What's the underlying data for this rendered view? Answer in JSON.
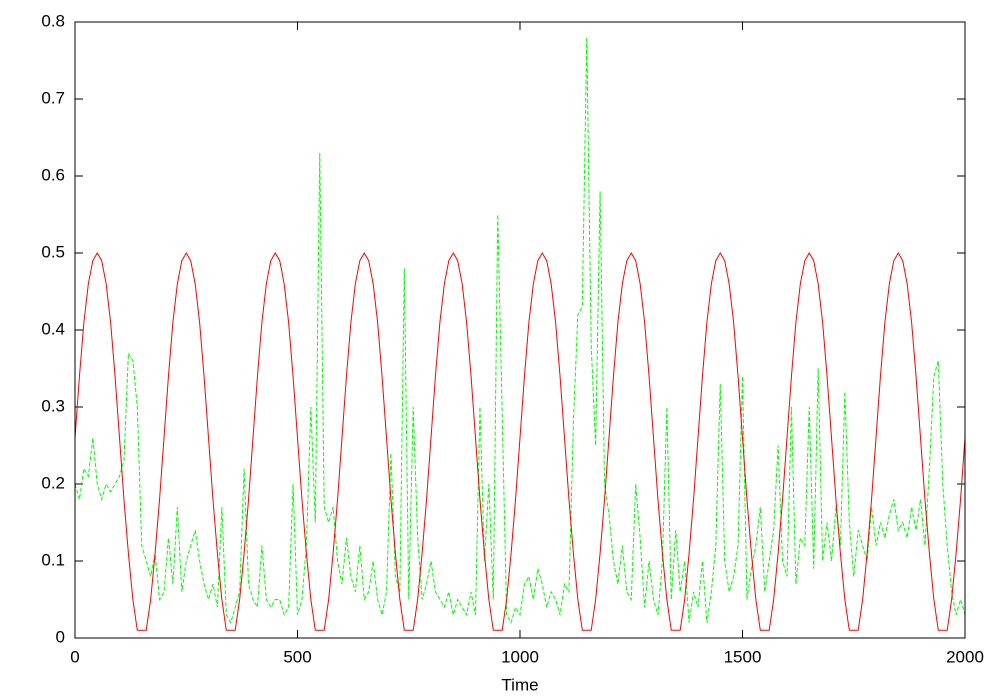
{
  "chart_data": {
    "type": "line",
    "xlabel": "Time",
    "x": [
      0,
      10,
      20,
      30,
      40,
      50,
      60,
      70,
      80,
      90,
      100,
      110,
      120,
      130,
      140,
      150,
      160,
      170,
      180,
      190,
      200,
      210,
      220,
      230,
      240,
      250,
      260,
      270,
      280,
      290,
      300,
      310,
      320,
      330,
      340,
      350,
      360,
      370,
      380,
      390,
      400,
      410,
      420,
      430,
      440,
      450,
      460,
      470,
      480,
      490,
      500,
      510,
      520,
      530,
      540,
      550,
      560,
      570,
      580,
      590,
      600,
      610,
      620,
      630,
      640,
      650,
      660,
      670,
      680,
      690,
      700,
      710,
      720,
      730,
      740,
      750,
      760,
      770,
      780,
      790,
      800,
      810,
      820,
      830,
      840,
      850,
      860,
      870,
      880,
      890,
      900,
      910,
      920,
      930,
      940,
      950,
      960,
      970,
      980,
      990,
      1000,
      1010,
      1020,
      1030,
      1040,
      1050,
      1060,
      1070,
      1080,
      1090,
      1100,
      1110,
      1120,
      1130,
      1140,
      1150,
      1160,
      1170,
      1180,
      1190,
      1200,
      1210,
      1220,
      1230,
      1240,
      1250,
      1260,
      1270,
      1280,
      1290,
      1300,
      1310,
      1320,
      1330,
      1340,
      1350,
      1360,
      1370,
      1380,
      1390,
      1400,
      1410,
      1420,
      1430,
      1440,
      1450,
      1460,
      1470,
      1480,
      1490,
      1500,
      1510,
      1520,
      1530,
      1540,
      1550,
      1560,
      1570,
      1580,
      1590,
      1600,
      1610,
      1620,
      1630,
      1640,
      1650,
      1660,
      1670,
      1680,
      1690,
      1700,
      1710,
      1720,
      1730,
      1740,
      1750,
      1760,
      1770,
      1780,
      1790,
      1800,
      1810,
      1820,
      1830,
      1840,
      1850,
      1860,
      1870,
      1880,
      1890,
      1900,
      1910,
      1920,
      1930,
      1940,
      1950,
      1960,
      1970,
      1980,
      1990,
      2000
    ],
    "series": [
      {
        "color": "#00ff00",
        "dashed": true,
        "values": [
          0.2,
          0.18,
          0.22,
          0.21,
          0.26,
          0.2,
          0.18,
          0.2,
          0.19,
          0.2,
          0.21,
          0.23,
          0.37,
          0.36,
          0.3,
          0.12,
          0.1,
          0.08,
          0.11,
          0.05,
          0.06,
          0.13,
          0.07,
          0.17,
          0.06,
          0.1,
          0.12,
          0.14,
          0.1,
          0.07,
          0.05,
          0.07,
          0.04,
          0.17,
          0.03,
          0.02,
          0.04,
          0.06,
          0.22,
          0.07,
          0.05,
          0.04,
          0.12,
          0.05,
          0.04,
          0.05,
          0.05,
          0.03,
          0.04,
          0.2,
          0.03,
          0.05,
          0.12,
          0.3,
          0.15,
          0.63,
          0.17,
          0.15,
          0.17,
          0.1,
          0.07,
          0.13,
          0.08,
          0.06,
          0.12,
          0.05,
          0.06,
          0.1,
          0.05,
          0.03,
          0.06,
          0.24,
          0.08,
          0.06,
          0.48,
          0.05,
          0.3,
          0.13,
          0.05,
          0.07,
          0.1,
          0.06,
          0.05,
          0.04,
          0.06,
          0.03,
          0.05,
          0.04,
          0.03,
          0.06,
          0.03,
          0.3,
          0.1,
          0.2,
          0.05,
          0.55,
          0.29,
          0.03,
          0.02,
          0.04,
          0.03,
          0.07,
          0.08,
          0.05,
          0.09,
          0.07,
          0.04,
          0.06,
          0.05,
          0.03,
          0.07,
          0.06,
          0.28,
          0.42,
          0.43,
          0.78,
          0.38,
          0.25,
          0.58,
          0.2,
          0.16,
          0.1,
          0.07,
          0.12,
          0.06,
          0.05,
          0.2,
          0.13,
          0.04,
          0.1,
          0.05,
          0.03,
          0.1,
          0.3,
          0.05,
          0.14,
          0.06,
          0.1,
          0.02,
          0.06,
          0.04,
          0.1,
          0.02,
          0.06,
          0.12,
          0.33,
          0.1,
          0.06,
          0.08,
          0.12,
          0.34,
          0.05,
          0.09,
          0.12,
          0.17,
          0.06,
          0.1,
          0.14,
          0.25,
          0.1,
          0.08,
          0.3,
          0.07,
          0.13,
          0.12,
          0.3,
          0.09,
          0.35,
          0.1,
          0.15,
          0.1,
          0.17,
          0.12,
          0.32,
          0.15,
          0.08,
          0.14,
          0.12,
          0.1,
          0.17,
          0.12,
          0.15,
          0.13,
          0.16,
          0.18,
          0.14,
          0.15,
          0.13,
          0.17,
          0.14,
          0.18,
          0.12,
          0.22,
          0.34,
          0.36,
          0.2,
          0.12,
          0.06,
          0.03,
          0.05,
          0.03
        ]
      },
      {
        "color": "#ff0000",
        "dashed": false,
        "values": [
          0.26,
          0.34,
          0.41,
          0.46,
          0.49,
          0.5,
          0.49,
          0.46,
          0.41,
          0.34,
          0.26,
          0.18,
          0.11,
          0.05,
          0.01,
          0.01,
          0.01,
          0.05,
          0.11,
          0.18,
          0.26,
          0.34,
          0.41,
          0.46,
          0.49,
          0.5,
          0.49,
          0.46,
          0.41,
          0.34,
          0.26,
          0.18,
          0.11,
          0.05,
          0.01,
          0.01,
          0.01,
          0.05,
          0.11,
          0.18,
          0.26,
          0.34,
          0.41,
          0.46,
          0.49,
          0.5,
          0.49,
          0.46,
          0.41,
          0.34,
          0.26,
          0.18,
          0.11,
          0.05,
          0.01,
          0.01,
          0.01,
          0.05,
          0.11,
          0.18,
          0.26,
          0.34,
          0.41,
          0.46,
          0.49,
          0.5,
          0.49,
          0.46,
          0.41,
          0.34,
          0.26,
          0.18,
          0.11,
          0.05,
          0.01,
          0.01,
          0.01,
          0.05,
          0.11,
          0.18,
          0.26,
          0.34,
          0.41,
          0.46,
          0.49,
          0.5,
          0.49,
          0.46,
          0.41,
          0.34,
          0.26,
          0.18,
          0.11,
          0.05,
          0.01,
          0.01,
          0.01,
          0.05,
          0.11,
          0.18,
          0.26,
          0.34,
          0.41,
          0.46,
          0.49,
          0.5,
          0.49,
          0.46,
          0.41,
          0.34,
          0.26,
          0.18,
          0.11,
          0.05,
          0.01,
          0.01,
          0.01,
          0.05,
          0.11,
          0.18,
          0.26,
          0.34,
          0.41,
          0.46,
          0.49,
          0.5,
          0.49,
          0.46,
          0.41,
          0.34,
          0.26,
          0.18,
          0.11,
          0.05,
          0.01,
          0.01,
          0.01,
          0.05,
          0.11,
          0.18,
          0.26,
          0.34,
          0.41,
          0.46,
          0.49,
          0.5,
          0.49,
          0.46,
          0.41,
          0.34,
          0.26,
          0.18,
          0.11,
          0.05,
          0.01,
          0.01,
          0.01,
          0.05,
          0.11,
          0.18,
          0.26,
          0.34,
          0.41,
          0.46,
          0.49,
          0.5,
          0.49,
          0.46,
          0.41,
          0.34,
          0.26,
          0.18,
          0.11,
          0.05,
          0.01,
          0.01,
          0.01,
          0.05,
          0.11,
          0.18,
          0.26,
          0.34,
          0.41,
          0.46,
          0.49,
          0.5,
          0.49,
          0.46,
          0.41,
          0.34,
          0.26,
          0.18,
          0.11,
          0.05,
          0.01,
          0.01,
          0.01,
          0.05,
          0.11,
          0.18,
          0.26
        ]
      }
    ],
    "xlim": [
      0,
      2000
    ],
    "xticks": [
      0,
      500,
      1000,
      1500,
      2000
    ],
    "ylim": [
      0,
      0.8
    ],
    "yticks": [
      0,
      0.1,
      0.2,
      0.3,
      0.4,
      0.5,
      0.6,
      0.7,
      0.8
    ]
  }
}
